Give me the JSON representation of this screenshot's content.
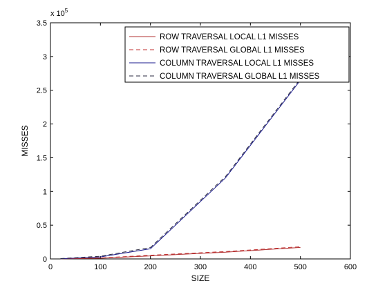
{
  "chart_data": {
    "type": "line",
    "xlabel": "SIZE",
    "ylabel": "MISSES",
    "xlim": [
      0,
      600
    ],
    "ylim": [
      0,
      3.5
    ],
    "y_scale_exponent_label": "x 10",
    "y_scale_exponent": "5",
    "xticks": [
      0,
      100,
      200,
      300,
      400,
      500,
      600
    ],
    "yticks": [
      0,
      0.5,
      1,
      1.5,
      2,
      2.5,
      3,
      3.5
    ],
    "xtick_labels": [
      "0",
      "100",
      "200",
      "300",
      "400",
      "500",
      "600"
    ],
    "ytick_labels": [
      "0",
      "0.5",
      "1",
      "1.5",
      "2",
      "2.5",
      "3",
      "3.5"
    ],
    "grid": false,
    "legend_position": "top-right",
    "series": [
      {
        "name": "ROW TRAVERSAL LOCAL L1 MISSES",
        "color": "#b03030",
        "dash": "solid",
        "x": [
          20,
          100,
          200,
          350,
          500
        ],
        "y": [
          0.002,
          0.01,
          0.045,
          0.1,
          0.17
        ]
      },
      {
        "name": "ROW TRAVERSAL GLOBAL L1 MISSES",
        "color": "#c03030",
        "dash": "dashed",
        "x": [
          20,
          100,
          200,
          350,
          500
        ],
        "y": [
          0.004,
          0.014,
          0.055,
          0.11,
          0.18
        ]
      },
      {
        "name": "COLUMN TRAVERSAL LOCAL L1 MISSES",
        "color": "#1a1a8c",
        "dash": "solid",
        "x": [
          20,
          100,
          200,
          350,
          500
        ],
        "y": [
          0.003,
          0.03,
          0.15,
          1.2,
          2.65
        ]
      },
      {
        "name": "COLUMN TRAVERSAL GLOBAL L1 MISSES",
        "color": "#2a2a40",
        "dash": "dashed",
        "x": [
          20,
          100,
          200,
          350,
          500
        ],
        "y": [
          0.005,
          0.04,
          0.17,
          1.22,
          2.67
        ]
      }
    ]
  }
}
